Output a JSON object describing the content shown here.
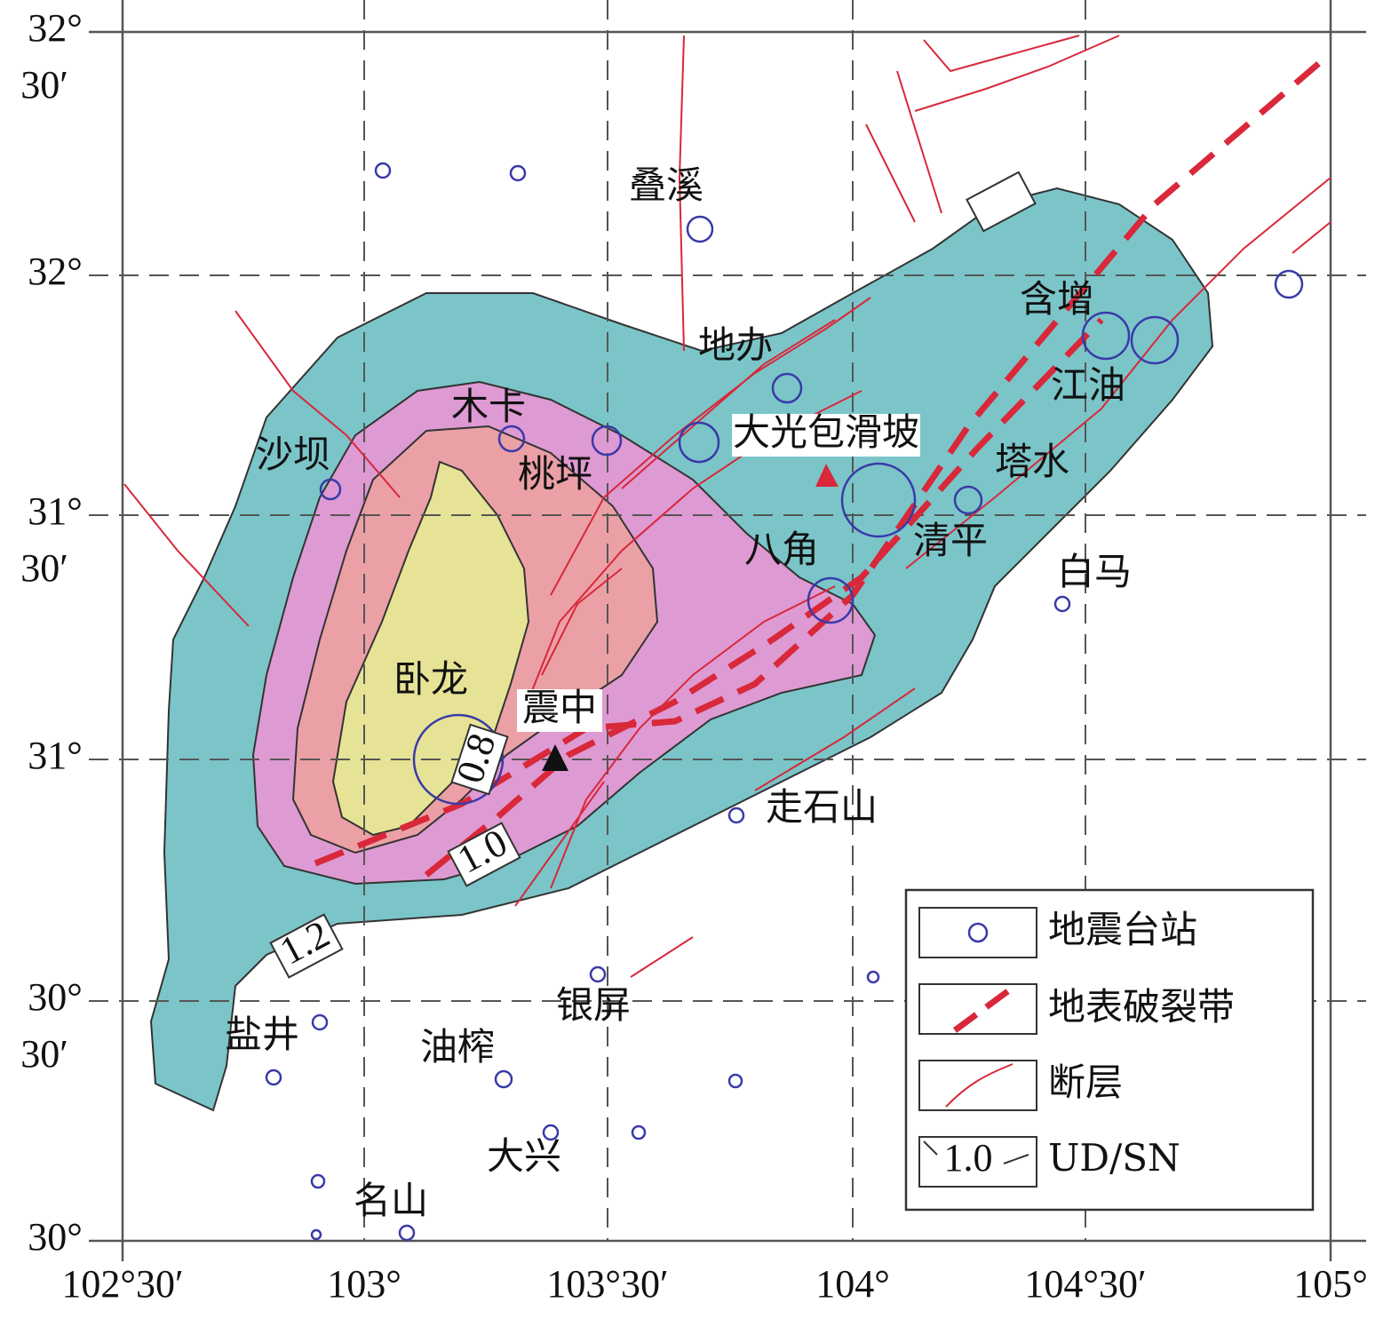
{
  "map": {
    "x_labels": [
      "102°30′",
      "103°",
      "103°30′",
      "104°",
      "104°30′",
      "105°"
    ],
    "y_labels": [
      [
        "32°",
        "30′"
      ],
      [
        "32°"
      ],
      [
        "31°",
        "30′"
      ],
      [
        "31°"
      ],
      [
        "30°",
        "30′"
      ],
      [
        "30°"
      ]
    ],
    "places": [
      "叠溪",
      "含增",
      "地办",
      "江油",
      "木卡",
      "大光包滑坡",
      "沙坝",
      "桃坪",
      "塔水",
      "八角",
      "清平",
      "白马",
      "卧龙",
      "震中",
      "走石山",
      "银屏",
      "盐井",
      "油榨",
      "大兴",
      "名山"
    ],
    "contour_labels": [
      "0.8",
      "1.0",
      "1.2"
    ],
    "legend": [
      "地震台站",
      "地表破裂带",
      "断层",
      "UD/SN"
    ]
  }
}
